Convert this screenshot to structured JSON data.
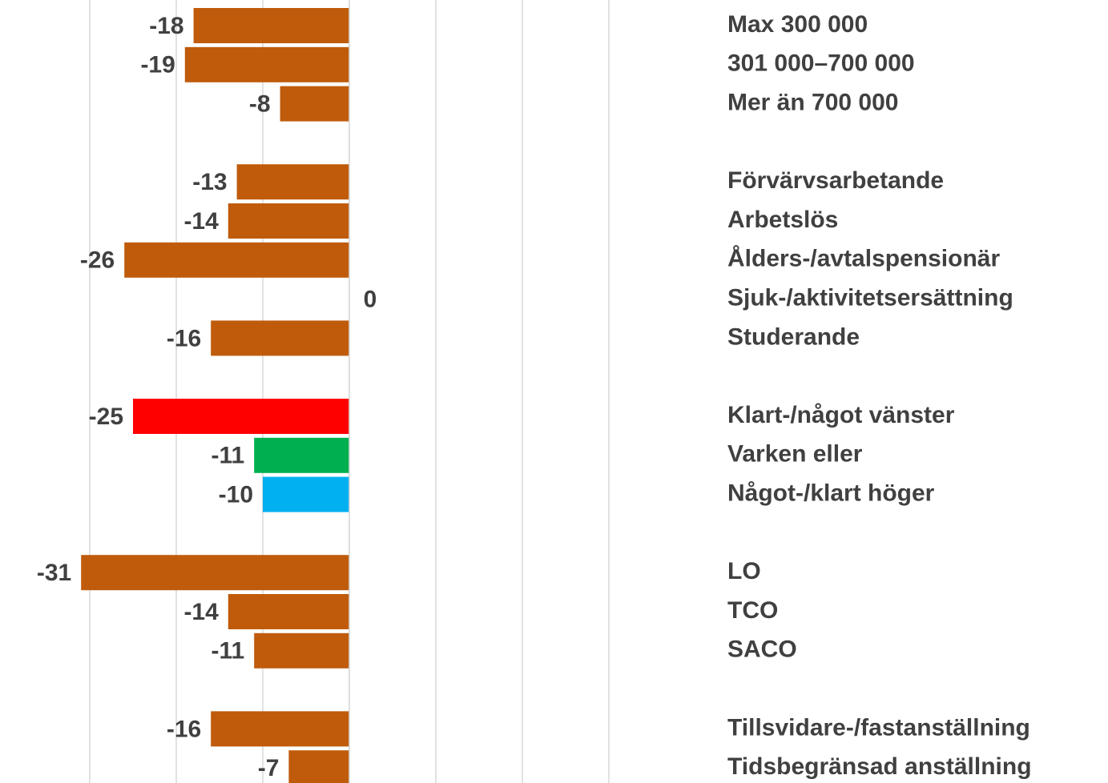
{
  "chart_data": {
    "type": "barh",
    "categories": [
      "Max 300 000",
      "301 000–700 000",
      "Mer än 700 000",
      null,
      "Förvärvsarbetande",
      "Arbetslös",
      "Ålders-/avtalspensionär",
      "Sjuk-/aktivitetsersättning",
      "Studerande",
      null,
      "Klart-/något vänster",
      "Varken eller",
      "Något-/klart höger",
      null,
      "LO",
      "TCO",
      "SACO",
      null,
      "Tillsvidare-/fastanställning",
      "Tidsbegränsad anställning"
    ],
    "values": [
      -18,
      -19,
      -8,
      null,
      -13,
      -14,
      -26,
      0,
      -16,
      null,
      -25,
      -11,
      -10,
      null,
      -31,
      -14,
      -11,
      null,
      -16,
      -7
    ],
    "colors": [
      "#bf5b0b",
      "#bf5b0b",
      "#bf5b0b",
      null,
      "#bf5b0b",
      "#bf5b0b",
      "#bf5b0b",
      "#bf5b0b",
      "#bf5b0b",
      null,
      "#ff0000",
      "#00b050",
      "#00b0f0",
      null,
      "#bf5b0b",
      "#bf5b0b",
      "#bf5b0b",
      null,
      "#bf5b0b",
      "#bf5b0b"
    ],
    "xlim": [
      -40,
      40
    ],
    "xticks": [
      -30,
      -20,
      -10,
      0,
      10,
      20,
      30
    ],
    "grid": true
  }
}
